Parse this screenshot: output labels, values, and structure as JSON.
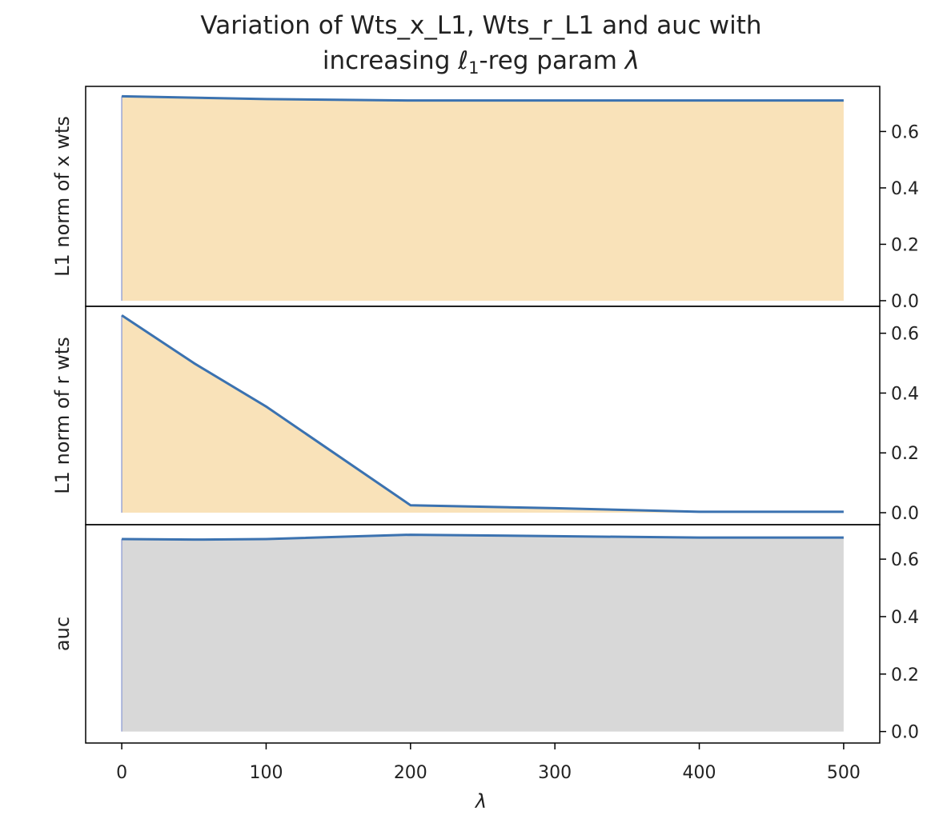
{
  "chart_data": {
    "type": "area",
    "title_line1": "Variation of Wts_x_L1, Wts_r_L1 and auc with",
    "title_line2_pre": "increasing ",
    "title_math_ell": "ℓ",
    "title_math_sub": "1",
    "title_line2_post": "-reg param ",
    "title_math_lambda": "λ",
    "xlabel": "λ",
    "x": [
      0,
      50,
      100,
      200,
      300,
      400,
      500
    ],
    "xlim": [
      -25,
      525
    ],
    "x_ticks": [
      "0",
      "100",
      "200",
      "300",
      "400",
      "500"
    ],
    "shared_x": true,
    "y_axis_side": "right",
    "line_color": "#3b72b0",
    "panels": [
      {
        "ylabel": "L1 norm of x wts",
        "values": [
          0.725,
          0.72,
          0.715,
          0.71,
          0.71,
          0.71,
          0.71
        ],
        "ylim": [
          -0.02,
          0.76
        ],
        "y_ticks": [
          "0.0",
          "0.2",
          "0.4",
          "0.6"
        ],
        "fill_color": "#f9e2b9"
      },
      {
        "ylabel": "L1 norm of r wts",
        "values": [
          0.66,
          0.5,
          0.355,
          0.025,
          0.015,
          0.003,
          0.003
        ],
        "ylim": [
          -0.04,
          0.69
        ],
        "y_ticks": [
          "0.0",
          "0.2",
          "0.4",
          "0.6"
        ],
        "fill_color": "#f9e2b9"
      },
      {
        "ylabel": "auc",
        "values": [
          0.67,
          0.668,
          0.67,
          0.685,
          0.68,
          0.675,
          0.675
        ],
        "ylim": [
          -0.04,
          0.72
        ],
        "y_ticks": [
          "0.0",
          "0.2",
          "0.4",
          "0.6"
        ],
        "fill_color": "#d8d8d8"
      }
    ]
  }
}
